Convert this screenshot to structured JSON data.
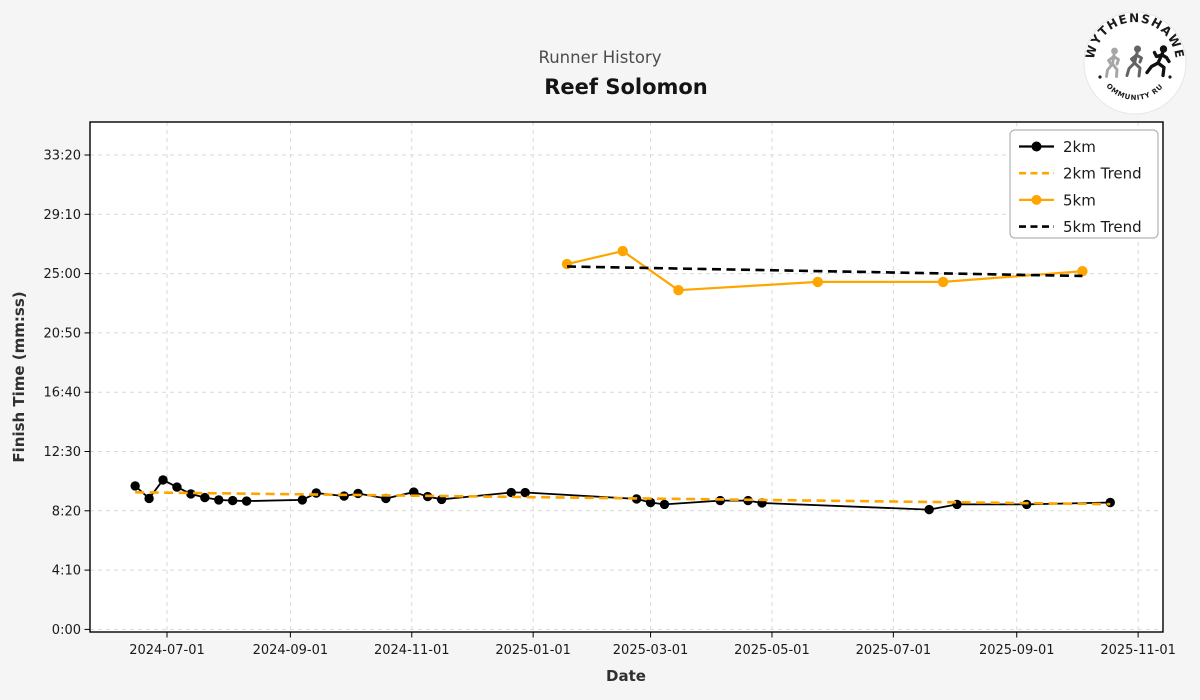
{
  "page": {
    "background": "#f5f5f5",
    "plot_background": "#ffffff"
  },
  "header": {
    "subtitle": "Runner History",
    "title": "Reef Solomon"
  },
  "logo": {
    "top": "WYTHENSHAWE",
    "bottom": "COMMUNITY RUN"
  },
  "colors": {
    "black_series": "#000000",
    "orange_series": "#FFA500",
    "grid": "#d9d9d9",
    "frame": "#000000",
    "legend_border": "#b3b3b3"
  },
  "chart_data": {
    "type": "line",
    "title": "Reef Solomon",
    "subtitle": "Runner History",
    "xlabel": "Date",
    "ylabel": "Finish Time (mm:ss)",
    "grid": true,
    "legend_position": "top-right",
    "x_tick_labels": [
      "2024-07-01",
      "2024-09-01",
      "2024-11-01",
      "2025-01-01",
      "2025-03-01",
      "2025-05-01",
      "2025-07-01",
      "2025-09-01",
      "2025-11-01"
    ],
    "y_ticks": [
      {
        "seconds": 0,
        "label": "0:00"
      },
      {
        "seconds": 250,
        "label": "4:10"
      },
      {
        "seconds": 500,
        "label": "8:20"
      },
      {
        "seconds": 750,
        "label": "12:30"
      },
      {
        "seconds": 1000,
        "label": "16:40"
      },
      {
        "seconds": 1250,
        "label": "20:50"
      },
      {
        "seconds": 1500,
        "label": "25:00"
      },
      {
        "seconds": 1750,
        "label": "29:10"
      },
      {
        "seconds": 2000,
        "label": "33:20"
      }
    ],
    "x_range": [
      "2024-05-23",
      "2025-11-13"
    ],
    "y_range_seconds": [
      -11,
      2139
    ],
    "series": [
      {
        "name": "2km",
        "color": "#000000",
        "style": "solid",
        "marker": "circle",
        "line_width": 1.8,
        "marker_radius": 4.7,
        "points": [
          {
            "date": "2024-06-15",
            "time": "10:05"
          },
          {
            "date": "2024-06-22",
            "time": "9:12"
          },
          {
            "date": "2024-06-29",
            "time": "10:30"
          },
          {
            "date": "2024-07-06",
            "time": "10:00"
          },
          {
            "date": "2024-07-13",
            "time": "9:31"
          },
          {
            "date": "2024-07-20",
            "time": "9:16"
          },
          {
            "date": "2024-07-27",
            "time": "9:06"
          },
          {
            "date": "2024-08-03",
            "time": "9:03"
          },
          {
            "date": "2024-08-10",
            "time": "9:01"
          },
          {
            "date": "2024-09-07",
            "time": "9:06"
          },
          {
            "date": "2024-09-14",
            "time": "9:35"
          },
          {
            "date": "2024-09-28",
            "time": "9:22"
          },
          {
            "date": "2024-10-05",
            "time": "9:33"
          },
          {
            "date": "2024-10-19",
            "time": "9:12"
          },
          {
            "date": "2024-11-02",
            "time": "9:39"
          },
          {
            "date": "2024-11-09",
            "time": "9:20"
          },
          {
            "date": "2024-11-16",
            "time": "9:08"
          },
          {
            "date": "2024-12-21",
            "time": "9:37"
          },
          {
            "date": "2024-12-28",
            "time": "9:37"
          },
          {
            "date": "2025-02-22",
            "time": "9:10"
          },
          {
            "date": "2025-03-01",
            "time": "8:55"
          },
          {
            "date": "2025-03-08",
            "time": "8:47"
          },
          {
            "date": "2025-04-05",
            "time": "9:03"
          },
          {
            "date": "2025-04-19",
            "time": "9:03"
          },
          {
            "date": "2025-04-26",
            "time": "8:53"
          },
          {
            "date": "2025-07-19",
            "time": "8:25"
          },
          {
            "date": "2025-08-02",
            "time": "8:47"
          },
          {
            "date": "2025-09-06",
            "time": "8:47"
          },
          {
            "date": "2025-10-18",
            "time": "8:55"
          }
        ]
      },
      {
        "name": "2km Trend",
        "color": "#FFA500",
        "style": "dashed",
        "marker": "none",
        "line_width": 2.6,
        "points": [
          {
            "date": "2024-06-15",
            "time": "9:38"
          },
          {
            "date": "2025-10-18",
            "time": "8:48"
          }
        ]
      },
      {
        "name": "5km",
        "color": "#FFA500",
        "style": "solid",
        "marker": "circle",
        "line_width": 2.2,
        "marker_radius": 5.2,
        "points": [
          {
            "date": "2025-01-18",
            "time": "25:40"
          },
          {
            "date": "2025-02-15",
            "time": "26:35"
          },
          {
            "date": "2025-03-15",
            "time": "23:50"
          },
          {
            "date": "2025-05-24",
            "time": "24:25"
          },
          {
            "date": "2025-07-26",
            "time": "24:25"
          },
          {
            "date": "2025-10-04",
            "time": "25:10"
          }
        ]
      },
      {
        "name": "5km Trend",
        "color": "#000000",
        "style": "dashed",
        "marker": "none",
        "line_width": 2.6,
        "points": [
          {
            "date": "2025-01-18",
            "time": "25:30"
          },
          {
            "date": "2025-10-04",
            "time": "24:50"
          }
        ]
      }
    ]
  }
}
